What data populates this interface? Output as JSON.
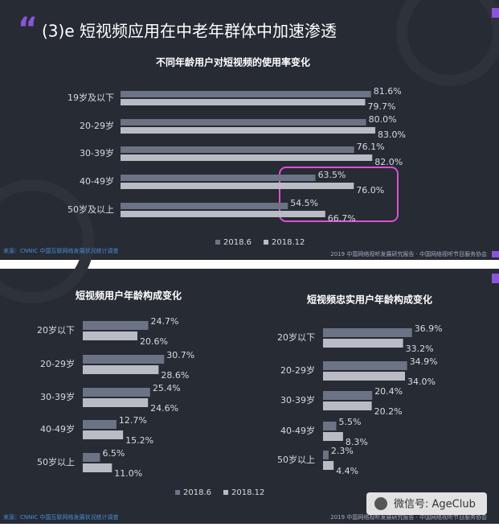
{
  "header": "(3)e 短视频应用在中老年群体中加速渗透",
  "slides": [
    {
      "source": "来源：CNNIC 中国互联网络发展状况统计调查",
      "credit": "2019 中国网络视听发展研究报告 · 中国网络视听节目服务协会"
    },
    {
      "source": "来源：CNNIC 中国互联网络发展状况统计调查",
      "credit": "2019 中国网络视听发展研究报告 · 中国网络视听节目服务协会"
    }
  ],
  "watermark": "微信号: AgeClub",
  "chart_data": [
    {
      "type": "bar",
      "orientation": "horizontal",
      "title": "不同年龄用户对短视频的使用率变化",
      "categories": [
        "19岁及以下",
        "20-29岁",
        "30-39岁",
        "40-49岁",
        "50岁及以上"
      ],
      "series": [
        {
          "name": "2018.6",
          "color": "#6b7385",
          "values": [
            81.6,
            80.0,
            76.1,
            63.5,
            54.5
          ],
          "value_labels": [
            "81.6%",
            "80.0%",
            "76.1%",
            "63.5%",
            "54.5%"
          ]
        },
        {
          "name": "2018.12",
          "color": "#b9bcc4",
          "values": [
            79.7,
            83.0,
            82.0,
            76.0,
            66.7
          ],
          "value_labels": [
            "79.7%",
            "83.0%",
            "82.0%",
            "76.0%",
            "66.7%"
          ]
        }
      ],
      "legend": "bottom"
    },
    {
      "type": "bar",
      "orientation": "horizontal",
      "title": "短视频用户年龄构成变化",
      "categories": [
        "20岁以下",
        "20-29岁",
        "30-39岁",
        "40-49岁",
        "50岁以上"
      ],
      "series": [
        {
          "name": "2018.6",
          "color": "#6b7385",
          "values": [
            24.7,
            30.7,
            25.4,
            12.7,
            6.5
          ],
          "value_labels": [
            "24.7%",
            "30.7%",
            "25.4%",
            "12.7%",
            "6.5%"
          ]
        },
        {
          "name": "2018.12",
          "color": "#b9bcc4",
          "values": [
            20.6,
            28.6,
            24.6,
            15.2,
            11.0
          ],
          "value_labels": [
            "20.6%",
            "28.6%",
            "24.6%",
            "15.2%",
            "11.0%"
          ]
        }
      ],
      "legend": "bottom"
    },
    {
      "type": "bar",
      "orientation": "horizontal",
      "title": "短视频忠实用户年龄构成变化",
      "categories": [
        "20岁以下",
        "20-29岁",
        "30-39岁",
        "40-49岁",
        "50岁以上"
      ],
      "series": [
        {
          "name": "2018.6",
          "color": "#6b7385",
          "values": [
            36.9,
            34.9,
            20.4,
            5.5,
            2.3
          ],
          "value_labels": [
            "36.9%",
            "34.9%",
            "20.4%",
            "5.5%",
            "2.3%"
          ]
        },
        {
          "name": "2018.12",
          "color": "#b9bcc4",
          "values": [
            33.2,
            34.0,
            20.2,
            8.3,
            4.4
          ],
          "value_labels": [
            "33.2%",
            "34.0%",
            "20.2%",
            "8.3%",
            "4.4%"
          ]
        }
      ]
    }
  ]
}
